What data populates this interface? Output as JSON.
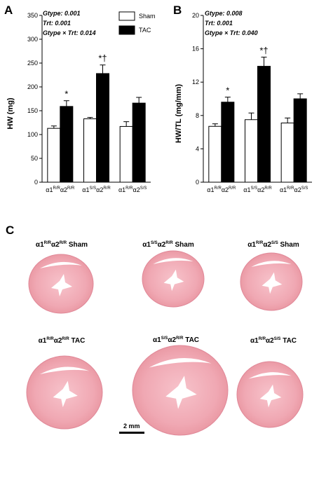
{
  "panels": {
    "A": "A",
    "B": "B",
    "C": "C"
  },
  "legend": {
    "sham": "Sham",
    "tac": "TAC"
  },
  "chart_data": [
    {
      "type": "bar",
      "panel": "A",
      "ylabel": "HW (mg)",
      "ylim": [
        0,
        350
      ],
      "yticks": [
        0,
        50,
        100,
        150,
        200,
        250,
        300,
        350
      ],
      "stats": [
        {
          "label": "Gtype",
          "value": "0.001"
        },
        {
          "label": "Trt",
          "value": "0.001"
        },
        {
          "label": "Gtype × Trt",
          "value": "0.014"
        }
      ],
      "categories": [
        {
          "a": "R/R",
          "b": "R/R"
        },
        {
          "a": "S/S",
          "b": "R/R"
        },
        {
          "a": "R/R",
          "b": "S/S"
        }
      ],
      "series": [
        {
          "name": "Sham",
          "color": "#ffffff",
          "values": [
            113,
            133,
            117
          ],
          "errors": [
            5,
            3,
            10
          ]
        },
        {
          "name": "TAC",
          "color": "#000000",
          "values": [
            159,
            228,
            166
          ],
          "errors": [
            12,
            18,
            12
          ]
        }
      ],
      "markers": [
        "*",
        "*†",
        ""
      ]
    },
    {
      "type": "bar",
      "panel": "B",
      "ylabel": "HW/TL (mg/mm)",
      "ylim": [
        0,
        20
      ],
      "yticks": [
        0,
        4,
        8,
        12,
        16,
        20
      ],
      "stats": [
        {
          "label": "Gtype",
          "value": "0.008"
        },
        {
          "label": "Trt",
          "value": "0.001"
        },
        {
          "label": "Gtype × Trt",
          "value": "0.040"
        }
      ],
      "categories": [
        {
          "a": "R/R",
          "b": "R/R"
        },
        {
          "a": "S/S",
          "b": "R/R"
        },
        {
          "a": "R/R",
          "b": "S/S"
        }
      ],
      "series": [
        {
          "name": "Sham",
          "color": "#ffffff",
          "values": [
            6.7,
            7.5,
            7.1
          ],
          "errors": [
            0.3,
            0.8,
            0.6
          ]
        },
        {
          "name": "TAC",
          "color": "#000000",
          "values": [
            9.6,
            13.9,
            10.0
          ],
          "errors": [
            0.6,
            1.1,
            0.6
          ]
        }
      ],
      "markers": [
        "*",
        "*†",
        ""
      ]
    }
  ],
  "histology": {
    "items": [
      {
        "a": "R/R",
        "b": "R/R",
        "group": "Sham"
      },
      {
        "a": "S/S",
        "b": "R/R",
        "group": "Sham"
      },
      {
        "a": "R/R",
        "b": "S/S",
        "group": "Sham"
      },
      {
        "a": "R/R",
        "b": "R/R",
        "group": "TAC"
      },
      {
        "a": "S/S",
        "b": "R/R",
        "group": "TAC"
      },
      {
        "a": "R/R",
        "b": "S/S",
        "group": "TAC"
      }
    ],
    "tissue_color": "#f0a7b2",
    "scale_bar": "2 mm"
  }
}
